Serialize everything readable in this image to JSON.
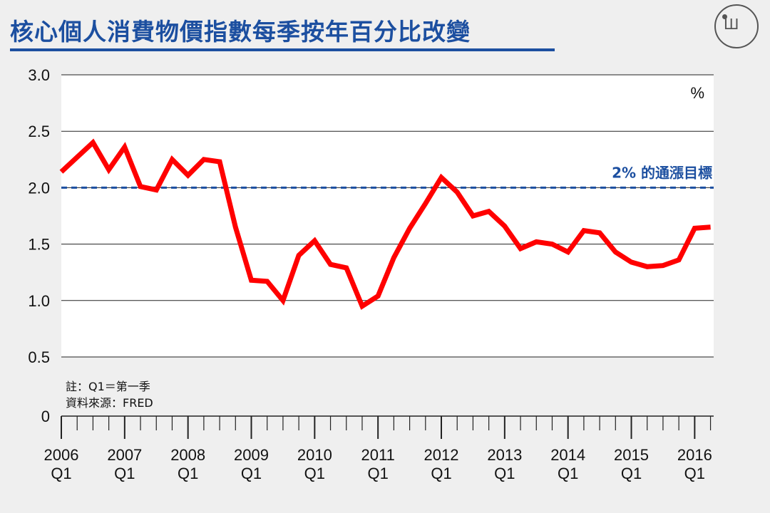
{
  "header": {
    "title": "核心個人消費物價指數每季按年百分比改變",
    "logo": "端"
  },
  "chart_data": {
    "type": "line",
    "unit_label": "%",
    "y_ticks": [
      "3.0",
      "2.5",
      "2.0",
      "1.5",
      "1.0",
      "0.5",
      "0"
    ],
    "ylim": [
      0,
      3.0
    ],
    "grid": true,
    "x_year_labels": [
      "2006",
      "2007",
      "2008",
      "2009",
      "2010",
      "2011",
      "2012",
      "2013",
      "2014",
      "2015",
      "2016"
    ],
    "x_quarter_labels": [
      "Q1",
      "Q1",
      "Q1",
      "Q1",
      "Q1",
      "Q1",
      "Q1",
      "Q1",
      "Q1",
      "Q1",
      "Q1"
    ],
    "reference_line": {
      "value": 2.0,
      "label": "2% 的通漲目標",
      "color": "#1c4fa0"
    },
    "series": [
      {
        "color": "#ff0000",
        "x": [
          2006.0,
          2006.25,
          2006.5,
          2006.75,
          2007.0,
          2007.25,
          2007.5,
          2007.75,
          2008.0,
          2008.25,
          2008.5,
          2008.75,
          2009.0,
          2009.25,
          2009.5,
          2009.75,
          2010.0,
          2010.25,
          2010.5,
          2010.75,
          2011.0,
          2011.25,
          2011.5,
          2011.75,
          2012.0,
          2012.25,
          2012.5,
          2012.75,
          2013.0,
          2013.25,
          2013.5,
          2013.75,
          2014.0,
          2014.25,
          2014.5,
          2014.75,
          2015.0,
          2015.25,
          2015.5,
          2015.75,
          2016.0,
          2016.25
        ],
        "values": [
          2.14,
          2.27,
          2.4,
          2.16,
          2.36,
          2.01,
          1.98,
          2.25,
          2.11,
          2.25,
          2.23,
          1.65,
          1.18,
          1.17,
          1.0,
          1.4,
          1.53,
          1.32,
          1.29,
          0.95,
          1.04,
          1.38,
          1.64,
          1.86,
          2.09,
          1.96,
          1.75,
          1.79,
          1.66,
          1.46,
          1.52,
          1.5,
          1.43,
          1.62,
          1.6,
          1.43,
          1.34,
          1.3,
          1.31,
          1.36,
          1.64,
          1.65
        ]
      }
    ],
    "annotations": {
      "note": "註：Q1＝第一季",
      "source": "資料來源：FRED"
    }
  }
}
